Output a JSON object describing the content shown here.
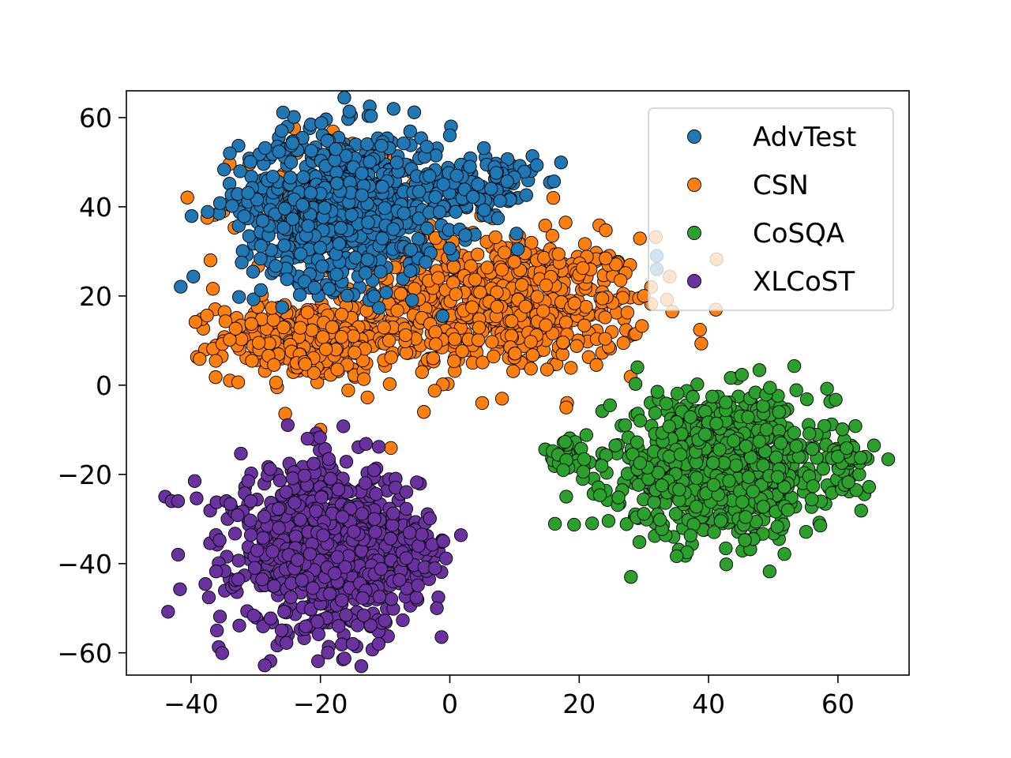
{
  "chart_data": {
    "type": "scatter",
    "title": "",
    "xlabel": "",
    "ylabel": "",
    "xlim": [
      -50,
      71
    ],
    "ylim": [
      -65,
      66
    ],
    "xticks": [
      -40,
      -20,
      0,
      20,
      40,
      60
    ],
    "yticks": [
      -60,
      -40,
      -20,
      0,
      20,
      40,
      60
    ],
    "xtick_labels": [
      "−40",
      "−20",
      "0",
      "20",
      "40",
      "60"
    ],
    "ytick_labels": [
      "−60",
      "−40",
      "−20",
      "0",
      "20",
      "40",
      "60"
    ],
    "grid": false,
    "legend": "top-right",
    "marker_edge_color": "#000000",
    "series": [
      {
        "name": "AdvTest",
        "color": "#1f77b4",
        "points_approx": 900,
        "clusters": [
          {
            "cx": -17,
            "cy": 40,
            "sx": 9,
            "sy": 10,
            "n": 780
          },
          {
            "cx": 5,
            "cy": 44,
            "sx": 5,
            "sy": 6,
            "n": 120
          }
        ],
        "outliers": [
          [
            32,
            29
          ],
          [
            32,
            26
          ],
          [
            -34,
            52
          ],
          [
            -26,
            57
          ],
          [
            0,
            56
          ]
        ]
      },
      {
        "name": "CSN",
        "color": "#ff7f0e",
        "points_approx": 1050,
        "clusters": [
          {
            "cx": 8,
            "cy": 18,
            "sx": 13,
            "sy": 9,
            "n": 620
          },
          {
            "cx": -22,
            "cy": 10,
            "sx": 8,
            "sy": 5,
            "n": 330
          },
          {
            "cx": -14,
            "cy": 40,
            "sx": 10,
            "sy": 10,
            "n": 100
          }
        ],
        "outliers": [
          [
            -20,
            -10
          ],
          [
            -4,
            -6
          ],
          [
            5,
            -4
          ],
          [
            -37,
            28
          ],
          [
            -35,
            39
          ],
          [
            30,
            20
          ],
          [
            18,
            -5
          ],
          [
            16,
            42
          ]
        ]
      },
      {
        "name": "CoSQA",
        "color": "#2ca02c",
        "points_approx": 950,
        "clusters": [
          {
            "cx": 42,
            "cy": -18,
            "sx": 10,
            "sy": 9,
            "n": 880
          },
          {
            "cx": 18,
            "cy": -16,
            "sx": 2,
            "sy": 2,
            "n": 40
          },
          {
            "cx": 62,
            "cy": -17,
            "sx": 2,
            "sy": 2,
            "n": 30
          }
        ],
        "outliers": [
          [
            28,
            -43
          ],
          [
            29,
            4
          ],
          [
            18,
            -25
          ],
          [
            22,
            -31
          ]
        ]
      },
      {
        "name": "XLCoST",
        "color": "#6a329f",
        "points_approx": 950,
        "clusters": [
          {
            "cx": -19,
            "cy": -37,
            "sx": 8,
            "sy": 11,
            "n": 880
          },
          {
            "cx": -5,
            "cy": -37,
            "sx": 2.5,
            "sy": 4,
            "n": 50
          }
        ],
        "outliers": [
          [
            -44,
            -25
          ],
          [
            -43,
            -26
          ],
          [
            -42,
            -26
          ],
          [
            -42,
            -38
          ],
          [
            -36,
            -55
          ],
          [
            -15,
            -58
          ],
          [
            -11,
            -58
          ],
          [
            -22,
            -12
          ],
          [
            -1,
            -35
          ],
          [
            -2,
            -50
          ]
        ]
      }
    ]
  }
}
